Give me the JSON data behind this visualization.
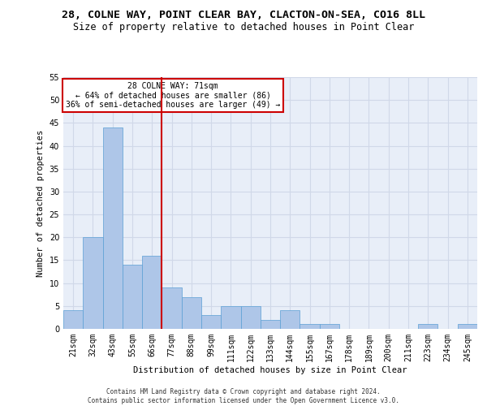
{
  "title": "28, COLNE WAY, POINT CLEAR BAY, CLACTON-ON-SEA, CO16 8LL",
  "subtitle": "Size of property relative to detached houses in Point Clear",
  "xlabel": "Distribution of detached houses by size in Point Clear",
  "ylabel": "Number of detached properties",
  "categories": [
    "21sqm",
    "32sqm",
    "43sqm",
    "55sqm",
    "66sqm",
    "77sqm",
    "88sqm",
    "99sqm",
    "111sqm",
    "122sqm",
    "133sqm",
    "144sqm",
    "155sqm",
    "167sqm",
    "178sqm",
    "189sqm",
    "200sqm",
    "211sqm",
    "223sqm",
    "234sqm",
    "245sqm"
  ],
  "values": [
    4,
    20,
    44,
    14,
    16,
    9,
    7,
    3,
    5,
    5,
    2,
    4,
    1,
    1,
    0,
    0,
    0,
    0,
    1,
    0,
    1
  ],
  "bar_color": "#aec6e8",
  "bar_edge_color": "#5a9fd4",
  "vline_color": "#cc0000",
  "vline_index": 5,
  "annotation_text": "28 COLNE WAY: 71sqm\n← 64% of detached houses are smaller (86)\n36% of semi-detached houses are larger (49) →",
  "annotation_box_color": "#ffffff",
  "annotation_box_edge": "#cc0000",
  "ylim": [
    0,
    55
  ],
  "yticks": [
    0,
    5,
    10,
    15,
    20,
    25,
    30,
    35,
    40,
    45,
    50,
    55
  ],
  "grid_color": "#d0d8e8",
  "background_color": "#e8eef8",
  "footer_text": "Contains HM Land Registry data © Crown copyright and database right 2024.\nContains public sector information licensed under the Open Government Licence v3.0.",
  "title_fontsize": 9.5,
  "subtitle_fontsize": 8.5,
  "xlabel_fontsize": 7.5,
  "ylabel_fontsize": 7.5,
  "annotation_fontsize": 7,
  "tick_fontsize": 7
}
